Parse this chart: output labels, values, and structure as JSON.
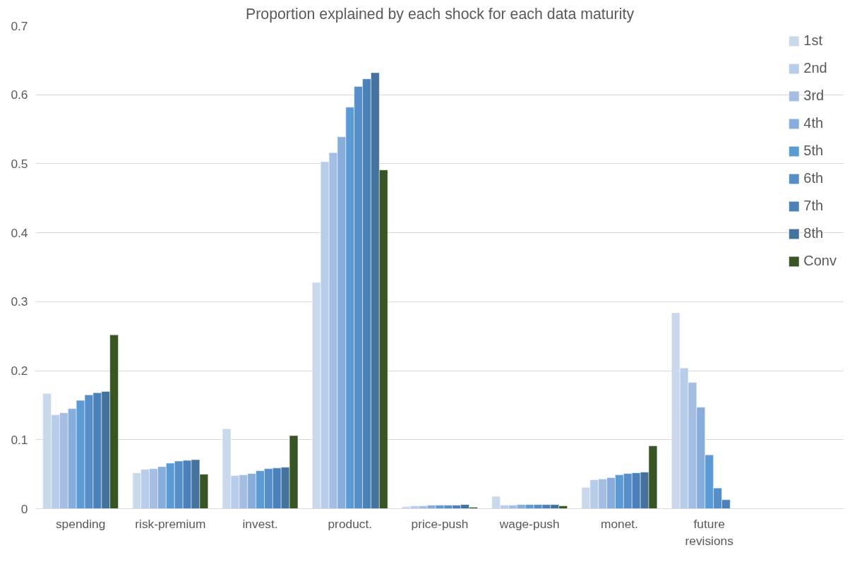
{
  "chart_data": {
    "type": "bar",
    "title": "Proportion explained by each shock for each data maturity",
    "categories": [
      "spending",
      "risk-premium",
      "invest.",
      "product.",
      "price-push",
      "wage-push",
      "monet.",
      "future revisions"
    ],
    "series": [
      {
        "name": "1st",
        "color": "#cad8ec",
        "values": [
          0.167,
          0.052,
          0.116,
          0.328,
          0.003,
          0.018,
          0.031,
          0.284
        ]
      },
      {
        "name": "2nd",
        "color": "#b8cde9",
        "values": [
          0.136,
          0.057,
          0.048,
          0.503,
          0.004,
          0.005,
          0.042,
          0.204
        ]
      },
      {
        "name": "3rd",
        "color": "#a3bee2",
        "values": [
          0.139,
          0.058,
          0.049,
          0.516,
          0.004,
          0.005,
          0.043,
          0.183
        ]
      },
      {
        "name": "4th",
        "color": "#86addc",
        "values": [
          0.145,
          0.061,
          0.051,
          0.539,
          0.005,
          0.006,
          0.045,
          0.147
        ]
      },
      {
        "name": "5th",
        "color": "#5b9bd5",
        "values": [
          0.157,
          0.066,
          0.055,
          0.582,
          0.005,
          0.006,
          0.049,
          0.078
        ]
      },
      {
        "name": "6th",
        "color": "#558ec8",
        "values": [
          0.165,
          0.069,
          0.058,
          0.612,
          0.005,
          0.006,
          0.051,
          0.03
        ]
      },
      {
        "name": "7th",
        "color": "#4a81ba",
        "values": [
          0.168,
          0.07,
          0.059,
          0.623,
          0.005,
          0.006,
          0.052,
          0.013
        ]
      },
      {
        "name": "8th",
        "color": "#44729f",
        "values": [
          0.17,
          0.071,
          0.06,
          0.632,
          0.006,
          0.006,
          0.053,
          null
        ]
      },
      {
        "name": "Conv",
        "color": "#375623",
        "values": [
          0.252,
          0.05,
          0.106,
          0.491,
          0.002,
          0.004,
          0.091,
          null
        ]
      }
    ],
    "ylim": [
      0,
      0.7
    ],
    "yticks": [
      {
        "value": 0,
        "label": "0"
      },
      0.1,
      0.2,
      0.3,
      0.4,
      0.5,
      0.6,
      0.7
    ],
    "grid": "y",
    "legend": "right"
  }
}
